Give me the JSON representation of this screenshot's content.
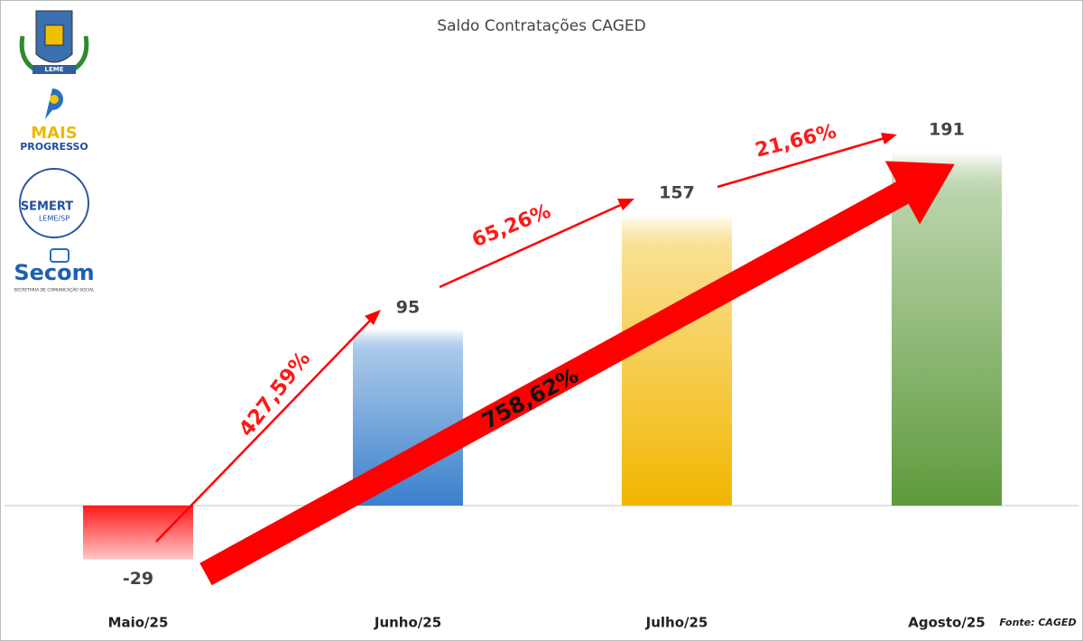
{
  "chart_data": {
    "type": "bar",
    "title": "Saldo Contratações CAGED",
    "categories": [
      "Maio/25",
      "Junho/25",
      "Julho/25",
      "Agosto/25"
    ],
    "values": [
      -29,
      95,
      157,
      191
    ],
    "colors": [
      "#ff1a1a",
      "#3a80cc",
      "#f2b600",
      "#5e9a3c"
    ],
    "annotations": [
      "427,59%",
      "65,26%",
      "21,66%",
      "758,62%"
    ],
    "source": "Fonte: CAGED"
  },
  "logos": {
    "coat": "LEME",
    "mais": "MAIS",
    "progresso": "PROGRESSO",
    "semert": "SEMERT",
    "leme": "LEME/SP",
    "secom": "Secom",
    "secom_sub": "SECRETARIA DE COMUNICAÇÃO SOCIAL"
  }
}
